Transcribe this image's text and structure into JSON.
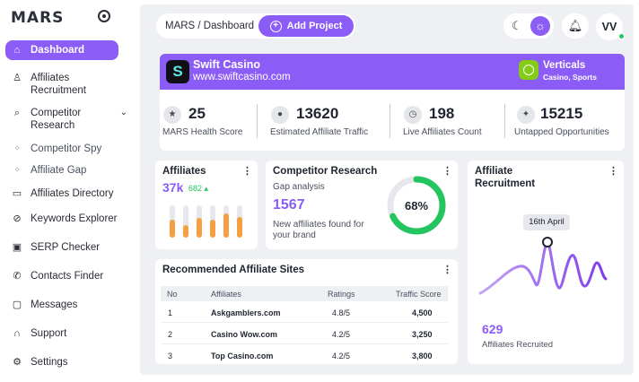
{
  "brand": {
    "name": "MARS"
  },
  "sidebar": {
    "items": [
      {
        "label": "Dashboard",
        "icon": "home-icon",
        "glyph": "⌂"
      },
      {
        "label": "Affiliates Recruitment",
        "icon": "user-icon",
        "glyph": "♙"
      },
      {
        "label": "Competitor Research",
        "icon": "search-icon",
        "glyph": "⌕"
      },
      {
        "label": "Competitor Spy",
        "icon": "bullet-icon",
        "glyph": "○"
      },
      {
        "label": "Affiliate Gap",
        "icon": "bullet-icon",
        "glyph": "○"
      },
      {
        "label": "Affiliates Directory",
        "icon": "folder-icon",
        "glyph": "▭"
      },
      {
        "label": "Keywords Explorer",
        "icon": "compass-icon",
        "glyph": "⊘"
      },
      {
        "label": "SERP Checker",
        "icon": "serp-icon",
        "glyph": "▣"
      },
      {
        "label": "Contacts Finder",
        "icon": "phone-icon",
        "glyph": "✆"
      },
      {
        "label": "Messages",
        "icon": "chat-icon",
        "glyph": "▢"
      },
      {
        "label": "Support",
        "icon": "headset-icon",
        "glyph": "∩"
      },
      {
        "label": "Settings",
        "icon": "gear-icon",
        "glyph": "⚙"
      }
    ]
  },
  "header": {
    "breadcrumb": "MARS / Dashboard",
    "add_project": "Add Project",
    "avatar_initials": "VV"
  },
  "banner": {
    "logo_letter": "S",
    "name": "Swift Casino",
    "url": "www.swiftcasino.com",
    "vertical_title": "Verticals",
    "vertical_sub": "Casino, Sports"
  },
  "stats": [
    {
      "value": "25",
      "label": "MARS Health Score",
      "icon": "star-icon",
      "glyph": "★"
    },
    {
      "value": "13620",
      "label": "Estimated Affiliate Traffic",
      "icon": "person-icon",
      "glyph": "●"
    },
    {
      "value": "198",
      "label": "Live Affiliates Count",
      "icon": "timer-icon",
      "glyph": "◷"
    },
    {
      "value": "15215",
      "label": "Untapped Opportunities",
      "icon": "bulb-icon",
      "glyph": "✦"
    }
  ],
  "affiliates_card": {
    "title": "Affiliates",
    "value": "37k",
    "delta": "682 ▴",
    "bars": [
      0.55,
      0.4,
      0.6,
      0.55,
      0.75,
      0.65
    ]
  },
  "competitor_card": {
    "title": "Competitor Research",
    "subtitle": "Gap analysis",
    "value": "1567",
    "description": "New affiliates found for your brand",
    "percent": 68,
    "percent_label": "68%"
  },
  "recruitment_card": {
    "title": "Affiliate Recruitment",
    "tooltip": "16th April",
    "value": "629",
    "label": "Affiliates Recruited"
  },
  "recommended": {
    "title": "Recommended Affiliate Sites",
    "columns": [
      "No",
      "Affiliates",
      "Ratings",
      "Traffic Score"
    ],
    "rows": [
      {
        "no": "1",
        "name": "Askgamblers.com",
        "rating": "4.8/5",
        "traffic": "4,500"
      },
      {
        "no": "2",
        "name": "Casino Wow.com",
        "rating": "4.2/5",
        "traffic": "3,250"
      },
      {
        "no": "3",
        "name": "Top Casino.com",
        "rating": "4.2/5",
        "traffic": "3,800"
      }
    ]
  },
  "colors": {
    "accent": "#8b5cf6",
    "success": "#22c55e",
    "bar": "#f59e42",
    "verticals": "#84cc16"
  }
}
